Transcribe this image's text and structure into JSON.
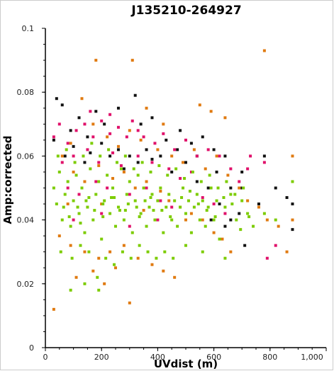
{
  "chart_data": {
    "type": "scatter",
    "title": "J135210-264927",
    "xlabel": "UVdist (m)",
    "ylabel": "Amp:corrected",
    "xlim": [
      0,
      1000
    ],
    "ylim": [
      0,
      0.1
    ],
    "x_ticks": [
      "0",
      "200",
      "400",
      "600",
      "800",
      "1,000"
    ],
    "y_ticks": [
      "0",
      "0.02",
      "0.04",
      "0.06",
      "0.08",
      "0.1"
    ],
    "x_tick_values": [
      0,
      200,
      400,
      600,
      800,
      1000
    ],
    "y_tick_values": [
      0,
      0.02,
      0.04,
      0.06,
      0.08,
      0.1
    ],
    "grid": false,
    "legend": "none",
    "series_colors": [
      "#111111",
      "#e0106a",
      "#e07a10",
      "#7ccc00"
    ],
    "series": [
      {
        "color": "#111111",
        "points": [
          [
            40,
            0.078
          ],
          [
            60,
            0.076
          ],
          [
            90,
            0.068
          ],
          [
            120,
            0.072
          ],
          [
            150,
            0.066
          ],
          [
            180,
            0.074
          ],
          [
            210,
            0.07
          ],
          [
            260,
            0.075
          ],
          [
            320,
            0.079
          ],
          [
            340,
            0.07
          ],
          [
            380,
            0.072
          ],
          [
            430,
            0.065
          ],
          [
            480,
            0.068
          ],
          [
            520,
            0.064
          ],
          [
            560,
            0.066
          ],
          [
            600,
            0.062
          ],
          [
            640,
            0.06
          ],
          [
            700,
            0.055
          ],
          [
            780,
            0.06
          ],
          [
            820,
            0.05
          ],
          [
            860,
            0.047
          ],
          [
            880,
            0.045
          ],
          [
            880,
            0.037
          ],
          [
            260,
            0.062
          ],
          [
            300,
            0.06
          ],
          [
            330,
            0.058
          ],
          [
            380,
            0.059
          ],
          [
            450,
            0.055
          ],
          [
            500,
            0.058
          ],
          [
            540,
            0.052
          ],
          [
            580,
            0.05
          ],
          [
            620,
            0.045
          ],
          [
            660,
            0.04
          ],
          [
            710,
            0.032
          ],
          [
            590,
            0.04
          ],
          [
            640,
            0.038
          ],
          [
            700,
            0.05
          ],
          [
            760,
            0.045
          ],
          [
            30,
            0.065
          ],
          [
            70,
            0.06
          ],
          [
            100,
            0.063
          ],
          [
            160,
            0.061
          ],
          [
            200,
            0.064
          ],
          [
            230,
            0.06
          ],
          [
            360,
            0.062
          ],
          [
            410,
            0.06
          ],
          [
            470,
            0.062
          ],
          [
            540,
            0.06
          ],
          [
            610,
            0.055
          ],
          [
            660,
            0.05
          ],
          [
            690,
            0.042
          ],
          [
            140,
            0.058
          ],
          [
            280,
            0.056
          ]
        ]
      },
      {
        "color": "#e0106a",
        "points": [
          [
            30,
            0.066
          ],
          [
            50,
            0.07
          ],
          [
            80,
            0.064
          ],
          [
            110,
            0.068
          ],
          [
            140,
            0.07
          ],
          [
            170,
            0.066
          ],
          [
            200,
            0.071
          ],
          [
            230,
            0.067
          ],
          [
            260,
            0.069
          ],
          [
            290,
            0.066
          ],
          [
            310,
            0.071
          ],
          [
            350,
            0.066
          ],
          [
            390,
            0.064
          ],
          [
            420,
            0.067
          ],
          [
            460,
            0.062
          ],
          [
            500,
            0.065
          ],
          [
            540,
            0.06
          ],
          [
            580,
            0.062
          ],
          [
            620,
            0.06
          ],
          [
            660,
            0.056
          ],
          [
            690,
            0.052
          ],
          [
            720,
            0.056
          ],
          [
            780,
            0.058
          ],
          [
            790,
            0.028
          ],
          [
            820,
            0.032
          ],
          [
            600,
            0.045
          ],
          [
            640,
            0.042
          ],
          [
            560,
            0.047
          ],
          [
            60,
            0.058
          ],
          [
            100,
            0.06
          ],
          [
            150,
            0.062
          ],
          [
            190,
            0.058
          ],
          [
            240,
            0.061
          ],
          [
            270,
            0.057
          ],
          [
            330,
            0.06
          ],
          [
            380,
            0.058
          ],
          [
            440,
            0.056
          ],
          [
            480,
            0.053
          ],
          [
            520,
            0.055
          ],
          [
            80,
            0.05
          ],
          [
            120,
            0.048
          ],
          [
            180,
            0.052
          ],
          [
            220,
            0.05
          ],
          [
            300,
            0.048
          ],
          [
            360,
            0.05
          ],
          [
            410,
            0.046
          ],
          [
            450,
            0.044
          ],
          [
            100,
            0.04
          ],
          [
            200,
            0.042
          ],
          [
            300,
            0.038
          ],
          [
            400,
            0.04
          ],
          [
            160,
            0.074
          ],
          [
            230,
            0.073
          ],
          [
            330,
            0.068
          ],
          [
            730,
            0.06
          ]
        ]
      },
      {
        "color": "#e07a10",
        "points": [
          [
            180,
            0.09
          ],
          [
            310,
            0.09
          ],
          [
            780,
            0.093
          ],
          [
            880,
            0.06
          ],
          [
            30,
            0.012
          ],
          [
            300,
            0.014
          ],
          [
            60,
            0.06
          ],
          [
            90,
            0.064
          ],
          [
            130,
            0.078
          ],
          [
            170,
            0.07
          ],
          [
            220,
            0.066
          ],
          [
            260,
            0.063
          ],
          [
            300,
            0.068
          ],
          [
            340,
            0.065
          ],
          [
            400,
            0.062
          ],
          [
            450,
            0.06
          ],
          [
            490,
            0.058
          ],
          [
            530,
            0.062
          ],
          [
            570,
            0.056
          ],
          [
            610,
            0.06
          ],
          [
            650,
            0.054
          ],
          [
            690,
            0.05
          ],
          [
            720,
            0.046
          ],
          [
            760,
            0.044
          ],
          [
            790,
            0.04
          ],
          [
            830,
            0.038
          ],
          [
            860,
            0.03
          ],
          [
            880,
            0.04
          ],
          [
            100,
            0.055
          ],
          [
            140,
            0.052
          ],
          [
            190,
            0.057
          ],
          [
            240,
            0.053
          ],
          [
            280,
            0.055
          ],
          [
            320,
            0.05
          ],
          [
            360,
            0.052
          ],
          [
            410,
            0.049
          ],
          [
            440,
            0.046
          ],
          [
            480,
            0.044
          ],
          [
            520,
            0.042
          ],
          [
            560,
            0.04
          ],
          [
            600,
            0.036
          ],
          [
            630,
            0.034
          ],
          [
            660,
            0.03
          ],
          [
            50,
            0.035
          ],
          [
            90,
            0.032
          ],
          [
            140,
            0.03
          ],
          [
            190,
            0.028
          ],
          [
            230,
            0.03
          ],
          [
            280,
            0.032
          ],
          [
            330,
            0.028
          ],
          [
            380,
            0.026
          ],
          [
            420,
            0.024
          ],
          [
            460,
            0.022
          ],
          [
            110,
            0.022
          ],
          [
            170,
            0.024
          ],
          [
            210,
            0.02
          ],
          [
            250,
            0.025
          ],
          [
            80,
            0.045
          ],
          [
            200,
            0.045
          ],
          [
            350,
            0.043
          ],
          [
            500,
            0.04
          ],
          [
            550,
            0.076
          ],
          [
            590,
            0.074
          ],
          [
            640,
            0.072
          ],
          [
            360,
            0.075
          ],
          [
            420,
            0.07
          ]
        ]
      },
      {
        "color": "#7ccc00",
        "points": [
          [
            30,
            0.05
          ],
          [
            40,
            0.045
          ],
          [
            50,
            0.055
          ],
          [
            60,
            0.04
          ],
          [
            70,
            0.048
          ],
          [
            80,
            0.052
          ],
          [
            90,
            0.038
          ],
          [
            100,
            0.046
          ],
          [
            110,
            0.054
          ],
          [
            120,
            0.042
          ],
          [
            130,
            0.05
          ],
          [
            140,
            0.036
          ],
          [
            150,
            0.044
          ],
          [
            160,
            0.056
          ],
          [
            170,
            0.04
          ],
          [
            180,
            0.048
          ],
          [
            190,
            0.052
          ],
          [
            200,
            0.034
          ],
          [
            210,
            0.046
          ],
          [
            220,
            0.054
          ],
          [
            230,
            0.042
          ],
          [
            240,
            0.05
          ],
          [
            250,
            0.038
          ],
          [
            260,
            0.044
          ],
          [
            270,
            0.056
          ],
          [
            280,
            0.04
          ],
          [
            290,
            0.048
          ],
          [
            300,
            0.052
          ],
          [
            310,
            0.036
          ],
          [
            320,
            0.046
          ],
          [
            330,
            0.054
          ],
          [
            340,
            0.042
          ],
          [
            350,
            0.05
          ],
          [
            360,
            0.038
          ],
          [
            370,
            0.044
          ],
          [
            380,
            0.048
          ],
          [
            390,
            0.04
          ],
          [
            400,
            0.046
          ],
          [
            410,
            0.05
          ],
          [
            420,
            0.036
          ],
          [
            430,
            0.044
          ],
          [
            440,
            0.048
          ],
          [
            450,
            0.04
          ],
          [
            460,
            0.046
          ],
          [
            470,
            0.038
          ],
          [
            480,
            0.044
          ],
          [
            490,
            0.05
          ],
          [
            500,
            0.042
          ],
          [
            510,
            0.046
          ],
          [
            520,
            0.036
          ],
          [
            530,
            0.044
          ],
          [
            540,
            0.048
          ],
          [
            550,
            0.04
          ],
          [
            560,
            0.046
          ],
          [
            570,
            0.038
          ],
          [
            580,
            0.044
          ],
          [
            590,
            0.05
          ],
          [
            600,
            0.04
          ],
          [
            610,
            0.046
          ],
          [
            620,
            0.034
          ],
          [
            640,
            0.044
          ],
          [
            660,
            0.048
          ],
          [
            680,
            0.04
          ],
          [
            700,
            0.046
          ],
          [
            720,
            0.042
          ],
          [
            740,
            0.038
          ],
          [
            780,
            0.042
          ],
          [
            820,
            0.04
          ],
          [
            880,
            0.052
          ],
          [
            45,
            0.06
          ],
          [
            75,
            0.062
          ],
          [
            105,
            0.058
          ],
          [
            135,
            0.06
          ],
          [
            165,
            0.064
          ],
          [
            195,
            0.06
          ],
          [
            225,
            0.062
          ],
          [
            255,
            0.058
          ],
          [
            285,
            0.06
          ],
          [
            315,
            0.056
          ],
          [
            345,
            0.058
          ],
          [
            375,
            0.055
          ],
          [
            405,
            0.057
          ],
          [
            435,
            0.054
          ],
          [
            465,
            0.056
          ],
          [
            495,
            0.053
          ],
          [
            525,
            0.055
          ],
          [
            555,
            0.052
          ],
          [
            585,
            0.054
          ],
          [
            615,
            0.05
          ],
          [
            645,
            0.052
          ],
          [
            675,
            0.048
          ],
          [
            705,
            0.05
          ],
          [
            55,
            0.03
          ],
          [
            95,
            0.028
          ],
          [
            125,
            0.032
          ],
          [
            155,
            0.03
          ],
          [
            185,
            0.022
          ],
          [
            215,
            0.028
          ],
          [
            245,
            0.026
          ],
          [
            275,
            0.03
          ],
          [
            305,
            0.028
          ],
          [
            335,
            0.032
          ],
          [
            365,
            0.03
          ],
          [
            395,
            0.028
          ],
          [
            425,
            0.03
          ],
          [
            455,
            0.028
          ],
          [
            500,
            0.032
          ],
          [
            560,
            0.03
          ],
          [
            640,
            0.028
          ],
          [
            90,
            0.018
          ],
          [
            140,
            0.02
          ],
          [
            190,
            0.018
          ],
          [
            115,
            0.044
          ],
          [
            145,
            0.046
          ],
          [
            175,
            0.043
          ],
          [
            205,
            0.045
          ],
          [
            235,
            0.047
          ],
          [
            265,
            0.043
          ],
          [
            295,
            0.045
          ],
          [
            325,
            0.044
          ],
          [
            355,
            0.046
          ],
          [
            385,
            0.043
          ],
          [
            65,
            0.044
          ],
          [
            85,
            0.041
          ],
          [
            125,
            0.039
          ],
          [
            155,
            0.047
          ],
          [
            205,
            0.041
          ],
          [
            245,
            0.047
          ],
          [
            285,
            0.043
          ],
          [
            335,
            0.041
          ],
          [
            375,
            0.047
          ],
          [
            415,
            0.043
          ],
          [
            445,
            0.041
          ],
          [
            485,
            0.047
          ],
          [
            515,
            0.049
          ],
          [
            545,
            0.045
          ],
          [
            575,
            0.043
          ],
          [
            605,
            0.041
          ],
          [
            635,
            0.047
          ],
          [
            665,
            0.045
          ],
          [
            695,
            0.037
          ],
          [
            725,
            0.041
          ]
        ]
      }
    ]
  }
}
